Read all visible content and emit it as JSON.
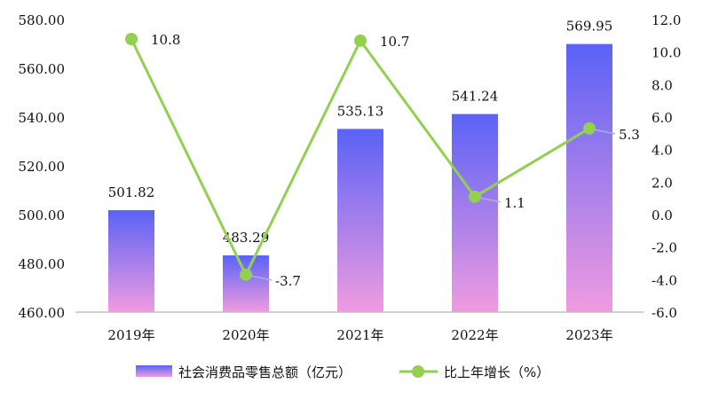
{
  "chart_data": {
    "type": "bar+line",
    "categories": [
      "2019年",
      "2020年",
      "2021年",
      "2022年",
      "2023年"
    ],
    "series": [
      {
        "name": "社会消费品零售总额（亿元）",
        "type": "bar",
        "axis": "left",
        "values": [
          501.82,
          483.29,
          535.13,
          541.24,
          569.95
        ],
        "labels": [
          "501.82",
          "483.29",
          "535.13",
          "541.24",
          "569.95"
        ],
        "color_top": "#5a62f6",
        "color_bottom": "#f09be0"
      },
      {
        "name": "比上年增长（%）",
        "type": "line",
        "axis": "right",
        "values": [
          10.8,
          -3.7,
          10.7,
          1.1,
          5.3
        ],
        "labels": [
          "10.8",
          "-3.7",
          "10.7",
          "1.1",
          "5.3"
        ],
        "color": "#92d050"
      }
    ],
    "left_axis": {
      "ylim": [
        460,
        580
      ],
      "ticks": [
        "460.00",
        "480.00",
        "500.00",
        "520.00",
        "540.00",
        "560.00",
        "580.00"
      ]
    },
    "right_axis": {
      "ylim": [
        -6,
        12
      ],
      "ticks": [
        "-6.0",
        "-4.0",
        "-2.0",
        "0.0",
        "2.0",
        "4.0",
        "6.0",
        "8.0",
        "10.0",
        "12.0"
      ]
    },
    "grid": false,
    "legend_position": "bottom"
  }
}
